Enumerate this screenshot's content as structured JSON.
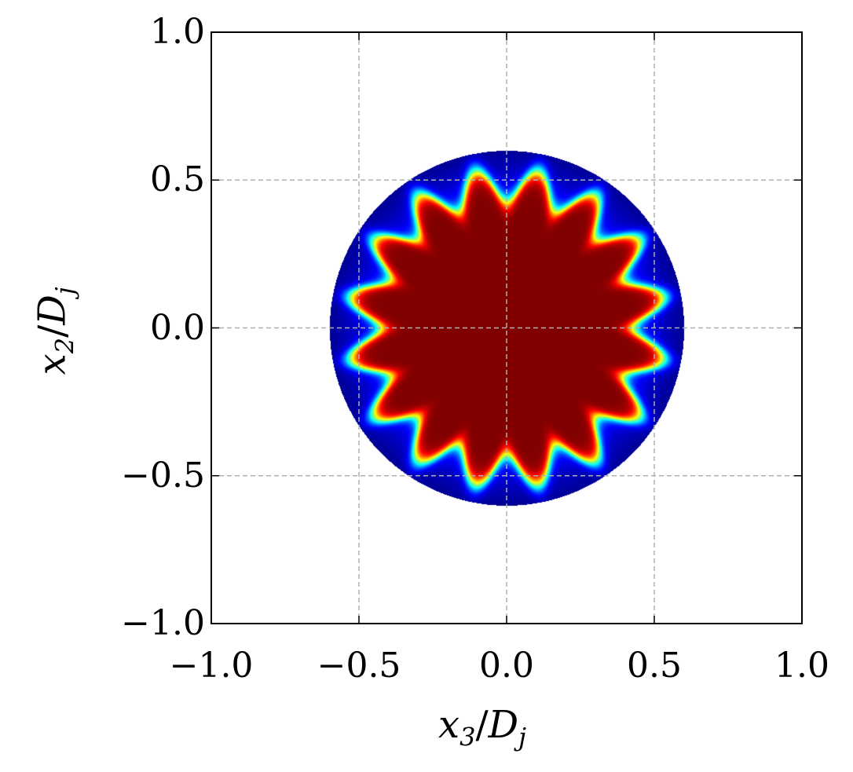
{
  "chart_data": {
    "type": "heatmap",
    "colormap": "jet",
    "xlabel": {
      "var": "x",
      "sub": "3",
      "den": "D",
      "den_sub": "j"
    },
    "ylabel": {
      "var": "x",
      "sub": "2",
      "den": "D",
      "den_sub": "j"
    },
    "xlim": [
      -1.0,
      1.0
    ],
    "ylim": [
      -1.0,
      1.0
    ],
    "xticks": [
      -1.0,
      -0.5,
      0.0,
      0.5,
      1.0
    ],
    "yticks": [
      -1.0,
      -0.5,
      0.0,
      0.5,
      1.0
    ],
    "xtick_labels": [
      "−1.0",
      "−0.5",
      "0.0",
      "0.5",
      "1.0"
    ],
    "ytick_labels": [
      "−1.0",
      "−0.5",
      "0.0",
      "0.5",
      "1.0"
    ],
    "grid": true,
    "grid_style": "dashed",
    "grid_color": "#b0b0b0",
    "field": {
      "domain": "disk",
      "domain_radius": 0.6,
      "core_value": "max",
      "core_color": "#800000",
      "edge_color": "#0000c8",
      "interface_mean_radius": 0.485,
      "interface_amplitude": 0.055,
      "lobe_count": 16,
      "lobe_phase_deg": 11.25
    }
  }
}
